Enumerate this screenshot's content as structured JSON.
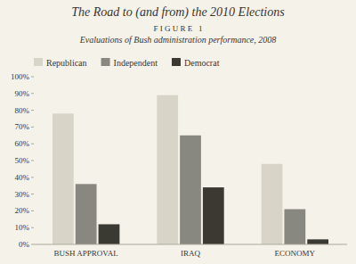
{
  "chart_data": {
    "type": "bar",
    "title": "The Road to (and from) the 2010 Elections",
    "subtitle": "Evaluations of Bush administration performance, 2008",
    "annotations": [
      "F I G U R E   1"
    ],
    "categories": [
      "BUSH APPROVAL",
      "IRAQ",
      "ECONOMY"
    ],
    "series": [
      {
        "name": "Republican",
        "color": "#d8d4c8",
        "values": [
          78,
          89,
          48
        ]
      },
      {
        "name": "Independent",
        "color": "#888880",
        "values": [
          36,
          65,
          21
        ]
      },
      {
        "name": "Democrat",
        "color": "#3a3a32",
        "values": [
          12,
          34,
          3
        ]
      }
    ],
    "ylim": [
      0,
      100
    ],
    "yticks": [
      {
        "value": 0,
        "label": "0%"
      },
      {
        "value": 10,
        "label": "10%"
      },
      {
        "value": 20,
        "label": "20%"
      },
      {
        "value": 30,
        "label": "30%"
      },
      {
        "value": 40,
        "label": "40%"
      },
      {
        "value": 50,
        "label": "50%"
      },
      {
        "value": 60,
        "label": "60%"
      },
      {
        "value": 70,
        "label": "70%"
      },
      {
        "value": 80,
        "label": "80%"
      },
      {
        "value": 90,
        "label": "90%"
      },
      {
        "value": 100,
        "label": "100%"
      }
    ],
    "grid": false,
    "legend": "top-left"
  }
}
